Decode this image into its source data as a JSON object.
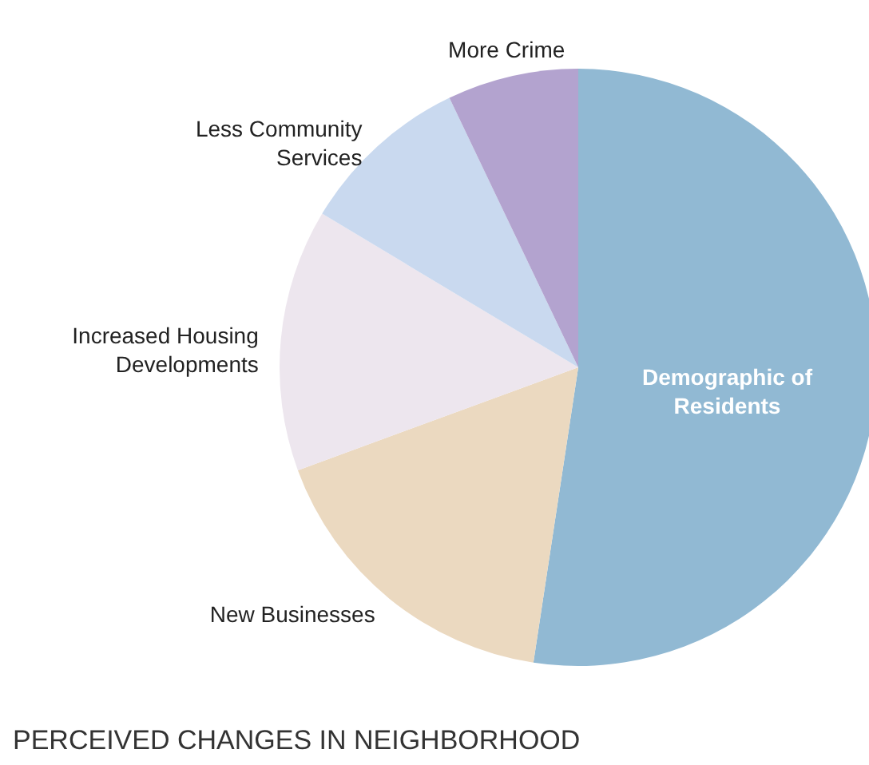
{
  "chart_data": {
    "type": "pie",
    "title": "PERCEIVED CHANGES IN NEIGHBORHOOD",
    "categories": [
      "Demographic of Residents",
      "New Businesses",
      "Increased Housing Developments",
      "Less Community Services",
      "More Crime"
    ],
    "values": [
      52.4,
      17,
      14.2,
      9.3,
      7.1
    ],
    "colors": [
      "#91b9d3",
      "#ebd9c0",
      "#ede6ee",
      "#c9d9ef",
      "#b3a3cf"
    ]
  }
}
